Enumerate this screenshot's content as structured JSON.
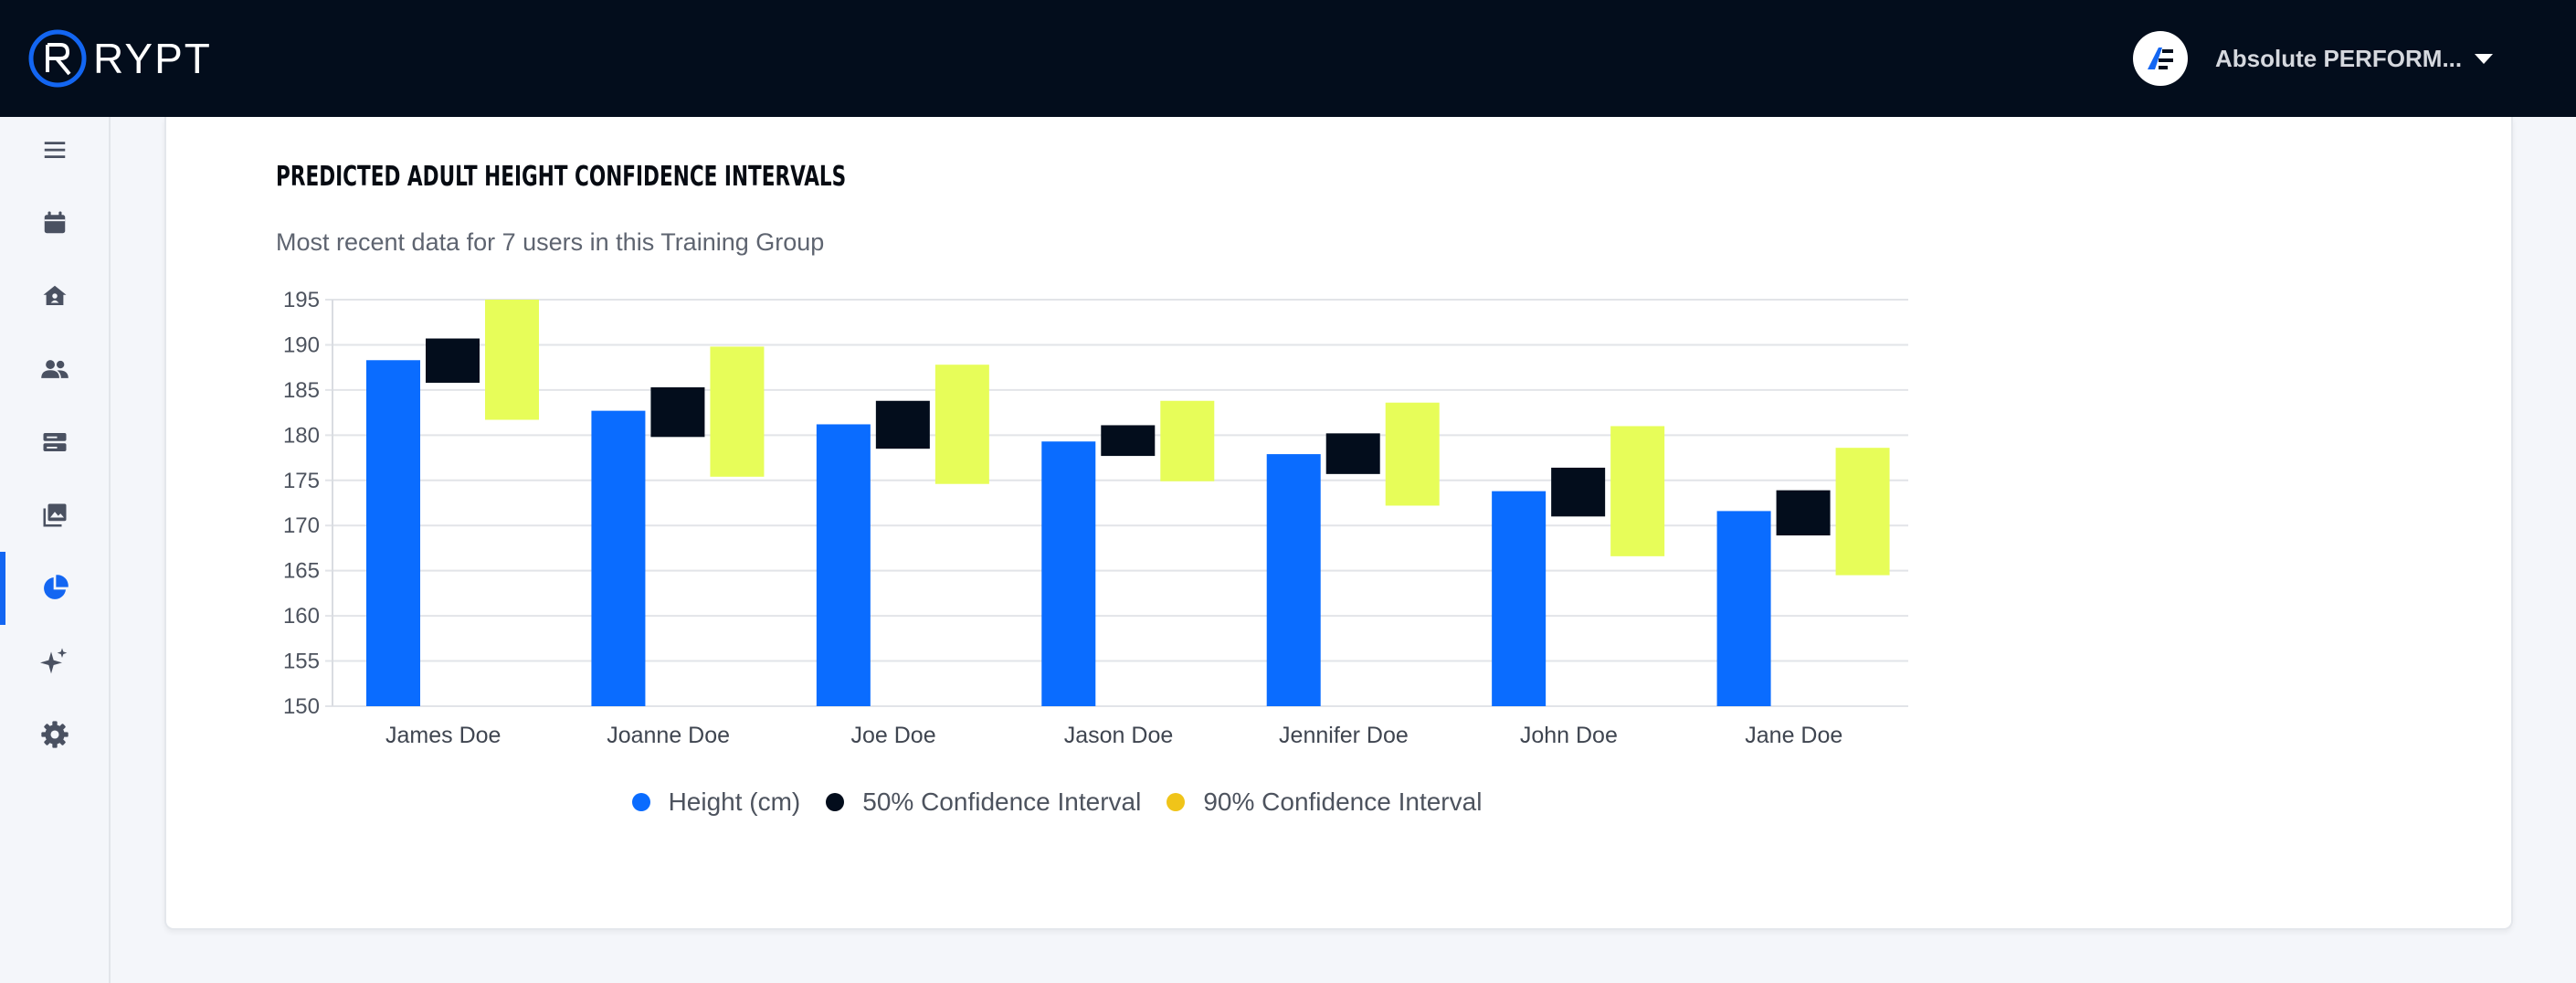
{
  "app": {
    "logo_text": "RYPT",
    "org_name": "Absolute PERFORM...",
    "colors": {
      "topbar": "#030d1c",
      "accent": "#1366f2"
    }
  },
  "sidebar": {
    "items": [
      {
        "icon": "menu-icon",
        "active": false
      },
      {
        "icon": "calendar-icon",
        "active": false
      },
      {
        "icon": "home-icon",
        "active": false
      },
      {
        "icon": "users-icon",
        "active": false
      },
      {
        "icon": "server-icon",
        "active": false
      },
      {
        "icon": "photo-library-icon",
        "active": false
      },
      {
        "icon": "pie-chart-icon",
        "active": true
      },
      {
        "icon": "sparkles-icon",
        "active": false
      },
      {
        "icon": "gear-icon",
        "active": false
      }
    ]
  },
  "card": {
    "title": "PREDICTED ADULT HEIGHT CONFIDENCE INTERVALS",
    "subtitle": "Most recent data for 7 users in this Training Group"
  },
  "chart_data": {
    "type": "bar",
    "categories": [
      "James Doe",
      "Joanne Doe",
      "Joe Doe",
      "Jason Doe",
      "Jennifer Doe",
      "John Doe",
      "Jane Doe"
    ],
    "ylim": [
      150,
      195
    ],
    "yticks": [
      150,
      155,
      160,
      165,
      170,
      175,
      180,
      185,
      190,
      195
    ],
    "grid": true,
    "legend_position": "bottom",
    "series": [
      {
        "name": "Height (cm)",
        "color": "#0a6cff",
        "values": [
          188.3,
          182.7,
          181.2,
          179.3,
          177.9,
          173.8,
          171.6
        ]
      },
      {
        "name": "50% Confidence Interval",
        "color": "#030d1c",
        "legend_color": "#030d1c",
        "ranges": [
          [
            185.8,
            190.7
          ],
          [
            179.8,
            185.3
          ],
          [
            178.5,
            183.8
          ],
          [
            177.7,
            181.1
          ],
          [
            175.7,
            180.2
          ],
          [
            171.0,
            176.4
          ],
          [
            168.9,
            173.9
          ]
        ]
      },
      {
        "name": "90% Confidence Interval",
        "color": "#e7fd59",
        "legend_color": "#f0c419",
        "ranges": [
          [
            181.7,
            195.0
          ],
          [
            175.4,
            189.8
          ],
          [
            174.6,
            187.8
          ],
          [
            174.9,
            183.8
          ],
          [
            172.2,
            183.6
          ],
          [
            166.6,
            181.0
          ],
          [
            164.5,
            178.6
          ]
        ]
      }
    ]
  }
}
